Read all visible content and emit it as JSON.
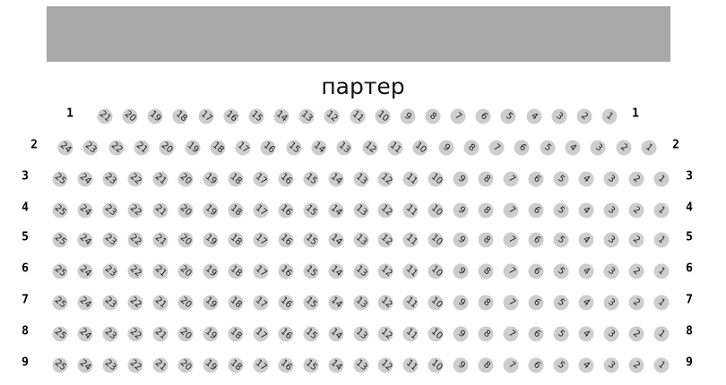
{
  "screen_color": "#a9a8a9",
  "hall_title": "партер",
  "seat_color": "#cdcdcd",
  "rows": [
    {
      "label": "1",
      "seats": [
        21,
        20,
        19,
        18,
        17,
        16,
        15,
        14,
        13,
        12,
        11,
        10,
        9,
        8,
        7,
        6,
        5,
        4,
        3,
        2,
        1
      ]
    },
    {
      "label": "2",
      "seats": [
        24,
        23,
        22,
        21,
        20,
        19,
        18,
        17,
        16,
        15,
        14,
        13,
        12,
        11,
        10,
        9,
        8,
        7,
        6,
        5,
        4,
        3,
        2,
        1
      ]
    },
    {
      "label": "3",
      "seats": [
        25,
        24,
        23,
        22,
        21,
        20,
        19,
        18,
        17,
        16,
        15,
        14,
        13,
        12,
        11,
        10,
        9,
        8,
        7,
        6,
        5,
        4,
        3,
        2,
        1
      ]
    },
    {
      "label": "4",
      "seats": [
        25,
        24,
        23,
        22,
        21,
        20,
        19,
        18,
        17,
        16,
        15,
        14,
        13,
        12,
        11,
        10,
        9,
        8,
        7,
        6,
        5,
        4,
        3,
        2,
        1
      ]
    },
    {
      "label": "5",
      "seats": [
        25,
        24,
        23,
        22,
        21,
        20,
        19,
        18,
        17,
        16,
        15,
        14,
        13,
        12,
        11,
        10,
        9,
        8,
        7,
        6,
        5,
        4,
        3,
        2,
        1
      ]
    },
    {
      "label": "6",
      "seats": [
        25,
        24,
        23,
        22,
        21,
        20,
        19,
        18,
        17,
        16,
        15,
        14,
        13,
        12,
        11,
        10,
        9,
        8,
        7,
        6,
        5,
        4,
        3,
        2,
        1
      ]
    },
    {
      "label": "7",
      "seats": [
        25,
        24,
        23,
        22,
        21,
        20,
        19,
        18,
        17,
        16,
        15,
        14,
        13,
        12,
        11,
        10,
        9,
        8,
        7,
        6,
        5,
        4,
        3,
        2,
        1
      ]
    },
    {
      "label": "8",
      "seats": [
        25,
        24,
        23,
        22,
        21,
        20,
        19,
        18,
        17,
        16,
        15,
        14,
        13,
        12,
        11,
        10,
        9,
        8,
        7,
        6,
        5,
        4,
        3,
        2,
        1
      ]
    },
    {
      "label": "9",
      "seats": [
        25,
        24,
        23,
        22,
        21,
        20,
        19,
        18,
        17,
        16,
        15,
        14,
        13,
        12,
        11,
        10,
        9,
        8,
        7,
        6,
        5,
        4,
        3,
        2,
        1
      ]
    }
  ]
}
